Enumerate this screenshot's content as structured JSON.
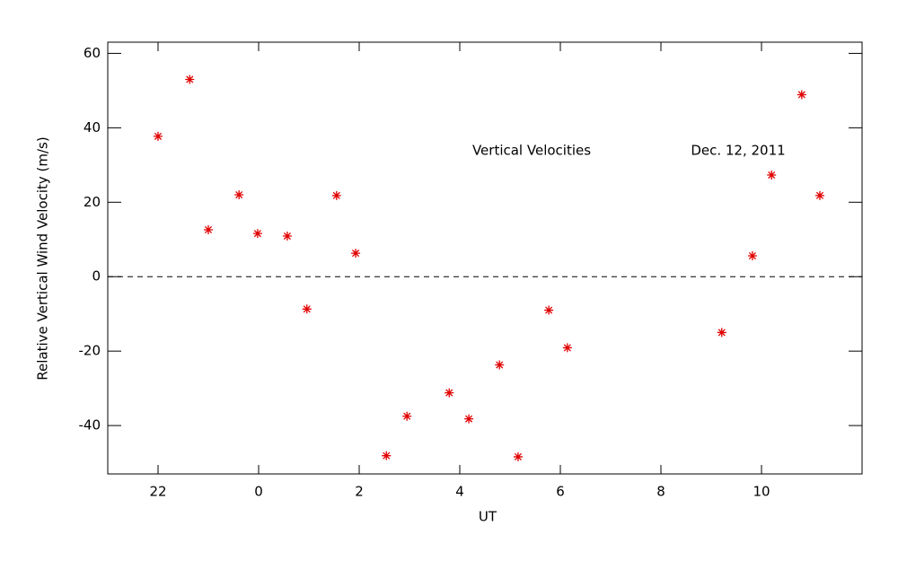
{
  "chart_data": {
    "type": "scatter",
    "xlabel": "UT",
    "ylabel": "Relative Vertical Wind Velocity (m/s)",
    "annotations": [
      "Vertical Velocities",
      "Dec. 12, 2011"
    ],
    "xlim": [
      21,
      36
    ],
    "xticks": [
      22,
      {
        "value": 24,
        "label": "0"
      },
      {
        "value": 26,
        "label": "2"
      },
      {
        "value": 28,
        "label": "4"
      },
      {
        "value": 30,
        "label": "6"
      },
      {
        "value": 32,
        "label": "8"
      },
      {
        "value": 34,
        "label": "10"
      }
    ],
    "ylim": [
      -53,
      63
    ],
    "yticks": [
      -40,
      -20,
      0,
      20,
      40,
      60
    ],
    "reference_line": 0,
    "series": [
      {
        "color": "#e00000",
        "x": [
          22.0,
          22.63,
          23.0,
          23.61,
          23.98,
          24.57,
          24.96,
          25.55,
          25.93,
          26.54,
          26.95,
          27.79,
          28.18,
          28.79,
          29.16,
          29.77,
          30.14,
          33.21,
          33.82,
          34.2,
          34.8,
          35.16
        ],
        "values": [
          37.7,
          53.0,
          12.6,
          22.0,
          11.6,
          10.9,
          -8.7,
          21.8,
          6.3,
          -48.1,
          -37.5,
          -31.2,
          -38.2,
          -23.7,
          -48.4,
          -9.0,
          -19.1,
          -15.0,
          5.6,
          27.3,
          48.9,
          21.8
        ]
      }
    ]
  }
}
